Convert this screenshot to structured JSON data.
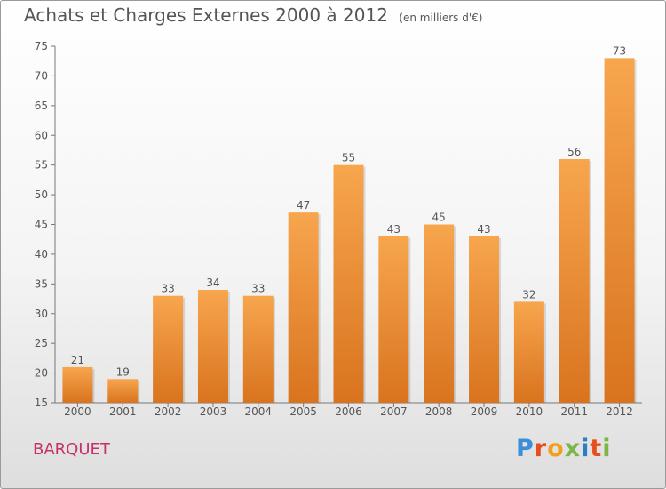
{
  "chart_title": "Achats et Charges Externes 2000 à 2012",
  "chart_unit": "(en milliers d'€)",
  "commune_name": "BARQUET",
  "logo": {
    "text": "Proxiti",
    "letter_colors": [
      "#3a8fd6",
      "#e84e1b",
      "#f2a01c",
      "#7ab648",
      "#2a7fc4",
      "#e84e1b",
      "#7ab648"
    ]
  },
  "colors": {
    "bar_top": "#f7a64e",
    "bar_bottom": "#d9731e",
    "text": "#555555",
    "commune": "#c8306a"
  },
  "chart_data": {
    "type": "bar",
    "title": "Achats et Charges Externes 2000 à 2012",
    "subtitle": "(en milliers d'€)",
    "categories": [
      "2000",
      "2001",
      "2002",
      "2003",
      "2004",
      "2005",
      "2006",
      "2007",
      "2008",
      "2009",
      "2010",
      "2011",
      "2012"
    ],
    "values": [
      21,
      19,
      33,
      34,
      33,
      47,
      55,
      43,
      45,
      43,
      32,
      56,
      73
    ],
    "ylim": [
      15,
      75
    ],
    "yticks": [
      15,
      20,
      25,
      30,
      35,
      40,
      45,
      50,
      55,
      60,
      65,
      70,
      75
    ],
    "grid": false,
    "legend": "none"
  }
}
